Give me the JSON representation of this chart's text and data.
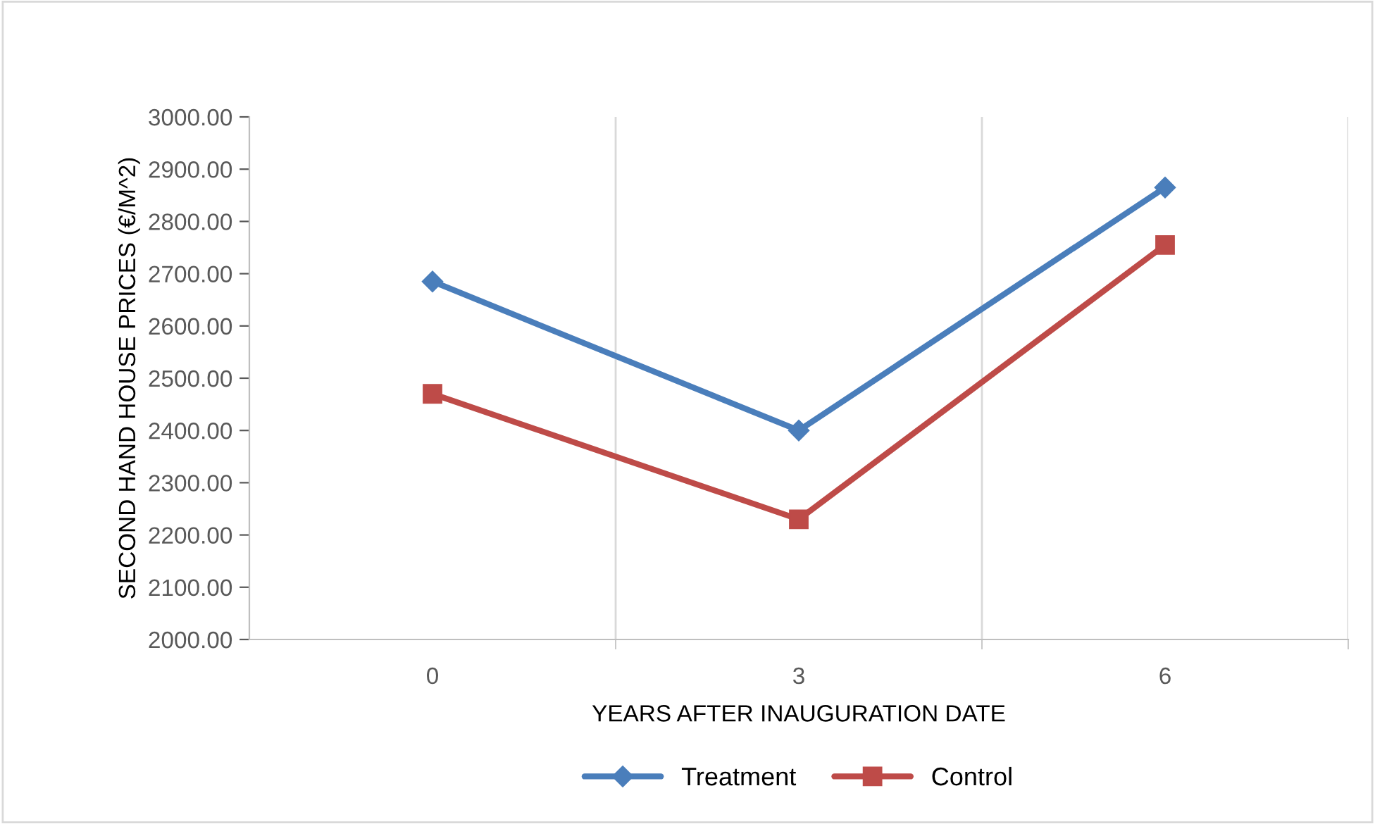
{
  "chart_data": {
    "type": "line",
    "xlabel": "YEARS AFTER INAUGURATION DATE",
    "ylabel": "SECOND HAND HOUSE PRICES (€/M^2)",
    "categories": [
      "0",
      "3",
      "6"
    ],
    "series": [
      {
        "name": "Treatment",
        "color": "#4a7ebb",
        "values": [
          2685,
          2400,
          2865
        ],
        "marker": "diamond"
      },
      {
        "name": "Control",
        "color": "#be4b48",
        "values": [
          2470,
          2230,
          2755
        ],
        "marker": "square"
      }
    ],
    "ylim": [
      2000,
      3000
    ],
    "yticks": [
      {
        "value": 2000,
        "label": "2000.00"
      },
      {
        "value": 2100,
        "label": "2100.00"
      },
      {
        "value": 2200,
        "label": "2200.00"
      },
      {
        "value": 2300,
        "label": "2300.00"
      },
      {
        "value": 2400,
        "label": "2400.00"
      },
      {
        "value": 2500,
        "label": "2500.00"
      },
      {
        "value": 2600,
        "label": "2600.00"
      },
      {
        "value": 2700,
        "label": "2700.00"
      },
      {
        "value": 2800,
        "label": "2800.00"
      },
      {
        "value": 2900,
        "label": "2900.00"
      },
      {
        "value": 3000,
        "label": "3000.00"
      }
    ],
    "grid": "x",
    "legend": "bottom",
    "line_style": "solid"
  }
}
